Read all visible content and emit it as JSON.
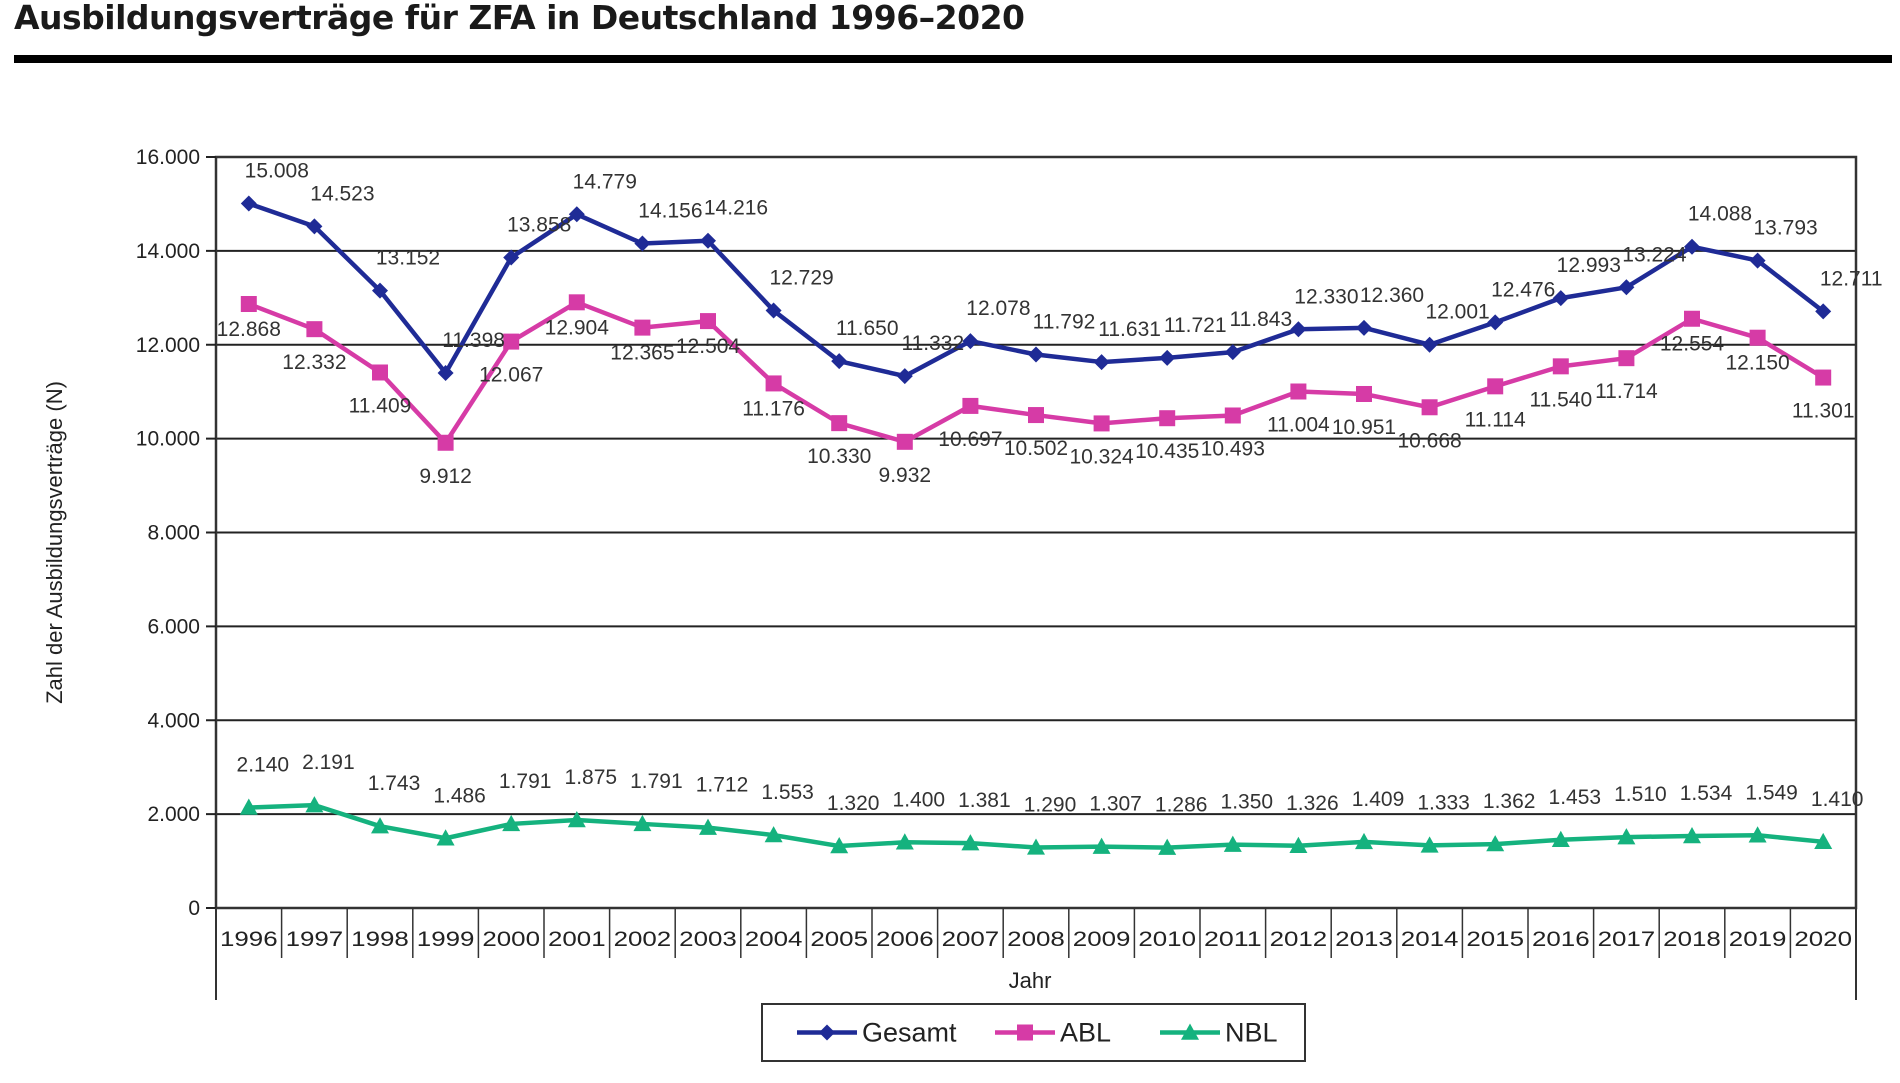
{
  "title": "Ausbildungsverträge für ZFA in Deutschland 1996–2020",
  "chart_data": {
    "type": "line",
    "title": "Ausbildungsverträge für ZFA in Deutschland 1996–2020",
    "xlabel": "Jahr",
    "ylabel": "Zahl der Ausbildungsverträge (N)",
    "ylim": [
      0,
      16000
    ],
    "yticks": [
      0,
      2000,
      4000,
      6000,
      8000,
      10000,
      12000,
      14000,
      16000
    ],
    "ytick_labels": [
      "0",
      "2.000",
      "4.000",
      "6.000",
      "8.000",
      "10.000",
      "12.000",
      "14.000",
      "16.000"
    ],
    "grid": true,
    "legend_position": "bottom-center",
    "categories": [
      "1996",
      "1997",
      "1998",
      "1999",
      "2000",
      "2001",
      "2002",
      "2003",
      "2004",
      "2005",
      "2006",
      "2007",
      "2008",
      "2009",
      "2010",
      "2011",
      "2012",
      "2013",
      "2014",
      "2015",
      "2016",
      "2017",
      "2018",
      "2019",
      "2020"
    ],
    "series": [
      {
        "name": "Gesamt",
        "color": "#1f2b96",
        "marker": "diamond",
        "values": [
          15008,
          14523,
          13152,
          11398,
          13858,
          14779,
          14156,
          14216,
          12729,
          11650,
          11332,
          12078,
          11792,
          11631,
          11721,
          11843,
          12330,
          12360,
          12001,
          12476,
          12993,
          13224,
          14088,
          13793,
          12711
        ],
        "labels": [
          "15.008",
          "14.523",
          "13.152",
          "11.398",
          "13.858",
          "14.779",
          "14.156",
          "14.216",
          "12.729",
          "11.650",
          "11.332",
          "12.078",
          "11.792",
          "11.631",
          "11.721",
          "11.843",
          "12.330",
          "12.360",
          "12.001",
          "12.476",
          "12.993",
          "13.224",
          "14.088",
          "13.793",
          "12.711"
        ]
      },
      {
        "name": "ABL",
        "color": "#d63ba6",
        "marker": "square",
        "values": [
          12868,
          12332,
          11409,
          9912,
          12067,
          12904,
          12365,
          12504,
          11176,
          10330,
          9932,
          10697,
          10502,
          10324,
          10435,
          10493,
          11004,
          10951,
          10668,
          11114,
          11540,
          11714,
          12554,
          12150,
          11301
        ],
        "labels": [
          "12.868",
          "12.332",
          "11.409",
          "9.912",
          "12.067",
          "12.904",
          "12.365",
          "12.504",
          "11.176",
          "10.330",
          "9.932",
          "10.697",
          "10.502",
          "10.324",
          "10.435",
          "10.493",
          "11.004",
          "10.951",
          "10.668",
          "11.114",
          "11.540",
          "11.714",
          "12.554",
          "12.150",
          "11.301"
        ]
      },
      {
        "name": "NBL",
        "color": "#15b27e",
        "marker": "triangle",
        "values": [
          2140,
          2191,
          1743,
          1486,
          1791,
          1875,
          1791,
          1712,
          1553,
          1320,
          1400,
          1381,
          1290,
          1307,
          1286,
          1350,
          1326,
          1409,
          1333,
          1362,
          1453,
          1510,
          1534,
          1549,
          1410
        ],
        "labels": [
          "2.140",
          "2.191",
          "1.743",
          "1.486",
          "1.791",
          "1.875",
          "1.791",
          "1.712",
          "1.553",
          "1.320",
          "1.400",
          "1.381",
          "1.290",
          "1.307",
          "1.286",
          "1.350",
          "1.326",
          "1.409",
          "1.333",
          "1.362",
          "1.453",
          "1.510",
          "1.534",
          "1.549",
          "1.410"
        ]
      }
    ]
  }
}
